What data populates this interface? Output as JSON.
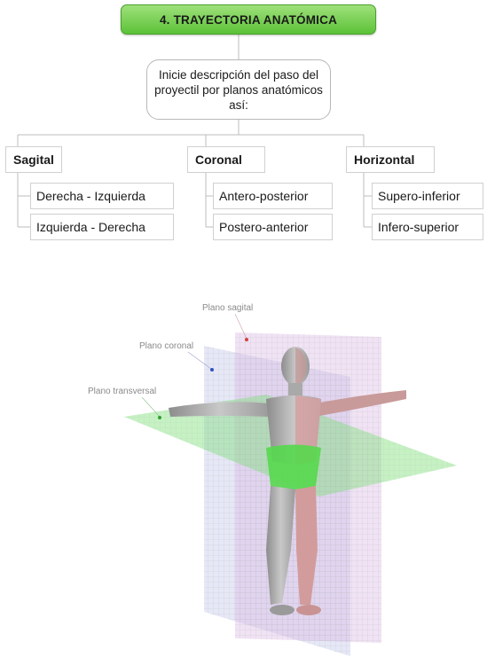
{
  "title": "4. TRAYECTORIA ANATÓMICA",
  "description": "Inicie descripción del paso del proyectil por planos anatómicos así:",
  "categories": [
    {
      "label": "Sagital",
      "items": [
        "Derecha - Izquierda",
        "Izquierda - Derecha"
      ]
    },
    {
      "label": "Coronal",
      "items": [
        "Antero-posterior",
        "Postero-anterior"
      ]
    },
    {
      "label": "Horizontal",
      "items": [
        "Supero-inferior",
        "Infero-superior"
      ]
    }
  ],
  "illustration": {
    "label_sagital": "Plano sagital",
    "label_coronal": "Plano coronal",
    "label_transversal": "Plano transversal"
  },
  "colors": {
    "title_green": "#6fcf4a",
    "sagital_plane": "#c9a0d6",
    "coronal_plane": "#a9b0e8",
    "transversal_plane": "#7ee07a"
  }
}
